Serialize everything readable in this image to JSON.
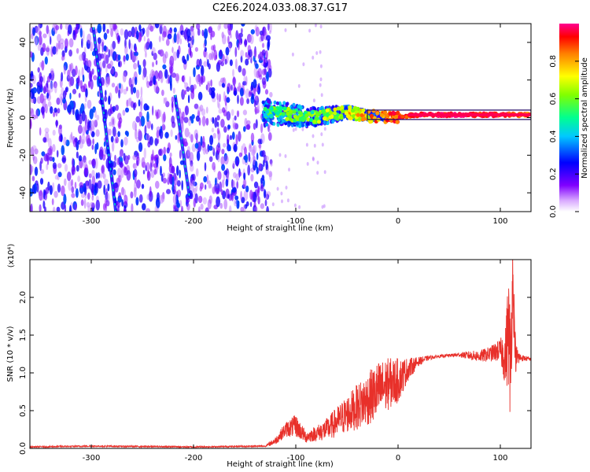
{
  "title": "C2E6.2024.033.08.37.G17",
  "chart_data": [
    {
      "type": "heatmap",
      "xlabel": "Height of straight line (km)",
      "ylabel": "Frequency (Hz)",
      "xlim": [
        -360,
        130
      ],
      "ylim": [
        -50,
        50
      ],
      "x_ticks": [
        -300,
        -200,
        -100,
        0,
        100
      ],
      "x_tick_labels": [
        "-300",
        "-200",
        "-100",
        "0",
        "100"
      ],
      "y_ticks": [
        40,
        20,
        0,
        -20,
        -40
      ],
      "y_tick_labels": [
        "40",
        "20",
        "0",
        "-20",
        "-40"
      ],
      "colorbar": {
        "label": "Normalized spectral amplitude",
        "range": [
          0.0,
          1.0
        ],
        "ticks": [
          0.0,
          0.2,
          0.4,
          0.6,
          0.8
        ],
        "tick_labels": [
          "0.0",
          "0.2",
          "0.4",
          "0.6",
          "0.8"
        ],
        "colormap": [
          "#ffffff",
          "#8000ff",
          "#0000ff",
          "#00c8ff",
          "#00ff80",
          "#80ff00",
          "#ffff00",
          "#ff8000",
          "#ff0000",
          "#ff0080"
        ]
      },
      "features": {
        "noise_region_x": [
          -360,
          -130
        ],
        "signal_trace": [
          {
            "x": -130,
            "f": 3,
            "amp": 0.45
          },
          {
            "x": -110,
            "f": 2,
            "amp": 0.5
          },
          {
            "x": -90,
            "f": 0,
            "amp": 0.5
          },
          {
            "x": -70,
            "f": 1,
            "amp": 0.55
          },
          {
            "x": -50,
            "f": 3,
            "amp": 0.65
          },
          {
            "x": -30,
            "f": 1,
            "amp": 0.7
          },
          {
            "x": -10,
            "f": 0,
            "amp": 0.85
          },
          {
            "x": 20,
            "f": 1.5,
            "amp": 0.95
          },
          {
            "x": 60,
            "f": 1.5,
            "amp": 0.97
          },
          {
            "x": 100,
            "f": 1.5,
            "amp": 0.9
          },
          {
            "x": 130,
            "f": 1.5,
            "amp": 0.8
          }
        ],
        "diagonal_streaks": [
          {
            "x0": -298,
            "f0": 48,
            "x1": -276,
            "f1": -50
          },
          {
            "x0": -218,
            "f0": 12,
            "x1": -204,
            "f1": -42
          }
        ]
      },
      "grid": false
    },
    {
      "type": "line",
      "xlabel": "Height of straight line (km)",
      "ylabel": "SNR (10 * v/v)",
      "y_multiplier": "(x10⁴)",
      "xlim": [
        -360,
        130
      ],
      "ylim": [
        0,
        2.5
      ],
      "x_ticks": [
        -300,
        -200,
        -100,
        0,
        100
      ],
      "x_tick_labels": [
        "-300",
        "-200",
        "-100",
        "0",
        "100"
      ],
      "y_ticks": [
        0,
        0.5,
        1.0,
        1.5,
        2.0
      ],
      "y_tick_labels": [
        "0.0",
        "0.5",
        "1.0",
        "1.5",
        "2.0"
      ],
      "color": "#e8302a",
      "series": [
        {
          "x": [
            -360,
            -300,
            -200,
            -130,
            -120,
            -110,
            -100,
            -90,
            -80,
            -70,
            -60,
            -50,
            -40,
            -30,
            -20,
            -10,
            0,
            10,
            20,
            30,
            40,
            50,
            60,
            70,
            80,
            90,
            100,
            105,
            108,
            110,
            112,
            115,
            120,
            130
          ],
          "values": [
            0.02,
            0.03,
            0.02,
            0.03,
            0.1,
            0.25,
            0.3,
            0.15,
            0.2,
            0.25,
            0.35,
            0.45,
            0.55,
            0.65,
            0.75,
            0.85,
            0.9,
            1.05,
            1.15,
            1.2,
            1.22,
            1.23,
            1.24,
            1.23,
            1.22,
            1.25,
            1.3,
            1.2,
            1.6,
            1.0,
            2.3,
            1.2,
            1.2,
            1.18
          ],
          "amplitude": [
            0.01,
            0.01,
            0.01,
            0.01,
            0.05,
            0.1,
            0.15,
            0.08,
            0.1,
            0.15,
            0.2,
            0.25,
            0.3,
            0.35,
            0.4,
            0.35,
            0.3,
            0.15,
            0.06,
            0.03,
            0.02,
            0.02,
            0.03,
            0.06,
            0.08,
            0.1,
            0.15,
            0.4,
            0.8,
            0.8,
            0.5,
            0.2,
            0.05,
            0.02
          ]
        }
      ],
      "grid": false
    }
  ]
}
